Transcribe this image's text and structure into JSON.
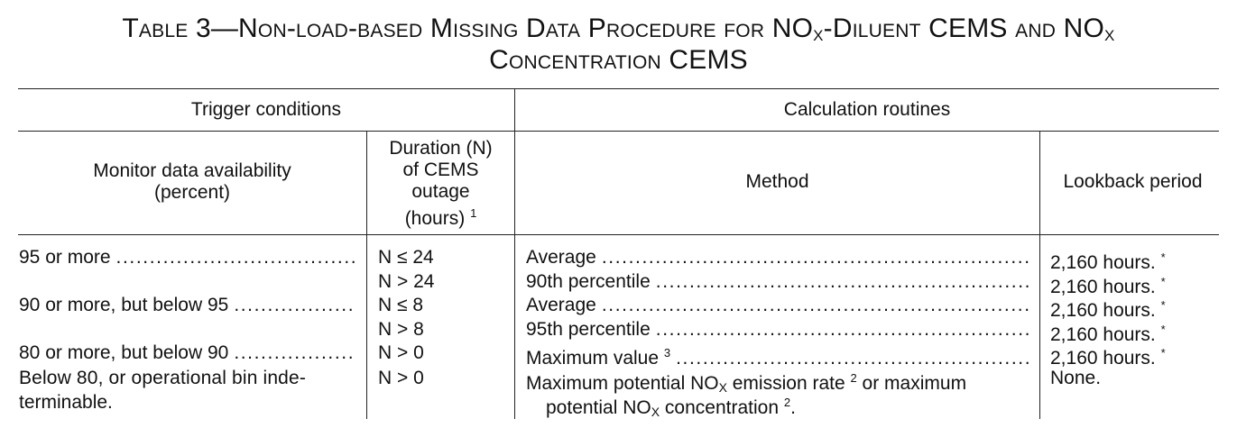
{
  "title": {
    "line1_a": "Table 3—Non-load-based Missing Data Procedure for NO",
    "line1_sub1": "X",
    "line1_b": "-Diluent CEMS and NO",
    "line1_sub2": "X",
    "line2": "Concentration CEMS"
  },
  "header": {
    "trigger_conditions": "Trigger conditions",
    "calculation_routines": "Calculation routines",
    "monitor_availability_1": "Monitor data availability",
    "monitor_availability_2": "(percent)",
    "duration_1": "Duration (N)",
    "duration_2": "of CEMS",
    "duration_3": "outage",
    "duration_4": "(hours)",
    "duration_fn": "1",
    "method": "Method",
    "lookback": "Lookback period"
  },
  "rows": [
    {
      "availability": "95 or more",
      "duration": "N ≤ 24",
      "method": "Average",
      "lookback": "2,160 hours.",
      "lookback_fn": "*"
    },
    {
      "availability": "",
      "duration": "N > 24",
      "method": "90th percentile",
      "lookback": "2,160 hours.",
      "lookback_fn": "*"
    },
    {
      "availability": "90 or more, but below 95",
      "duration": "N ≤ 8",
      "method": "Average",
      "lookback": "2,160 hours.",
      "lookback_fn": "*"
    },
    {
      "availability": "",
      "duration": "N > 8",
      "method": "95th percentile",
      "lookback": "2,160 hours.",
      "lookback_fn": "*"
    },
    {
      "availability": "80 or more, but below 90",
      "duration": "N > 0",
      "method": "Maximum value",
      "method_fn": "3",
      "lookback": "2,160 hours.",
      "lookback_fn": "*"
    }
  ],
  "last_row": {
    "availability_1": "Below 80, or operational bin inde-",
    "availability_2": "terminable.",
    "duration": "N > 0",
    "method_1a": "Maximum potential NO",
    "method_1sub": "X",
    "method_1b": " emission rate",
    "method_1fn": "2",
    "method_1c": " or maximum",
    "method_2a": "potential NO",
    "method_2sub": "X",
    "method_2b": " concentration",
    "method_2fn": "2",
    "method_2c": ".",
    "lookback": "None."
  },
  "leader_dots": "......................................................................................................................................................"
}
